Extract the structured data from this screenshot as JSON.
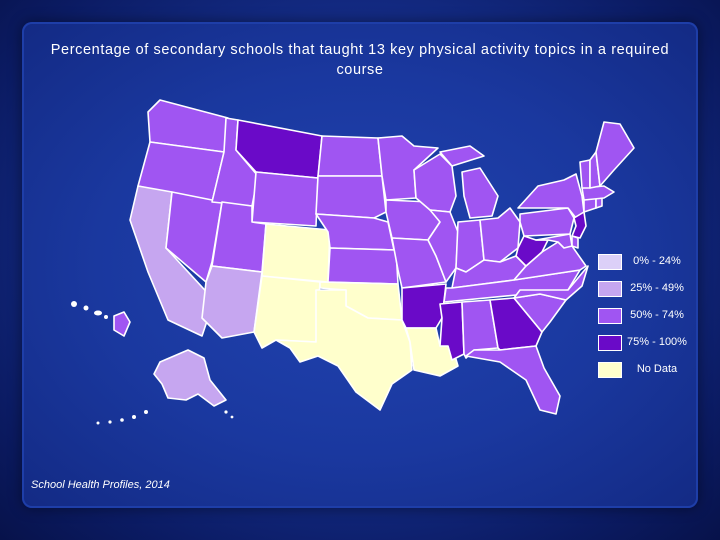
{
  "title": "Percentage of secondary schools that taught 13 key physical activity topics in a required course",
  "source": "School Health Profiles, 2014",
  "colors": {
    "background": "#1a389f",
    "border": "#ffffff",
    "no_data": "#ffffcc",
    "c0_24": "#dcd0f8",
    "c25_49": "#c6a6f0",
    "c50_74": "#a055f2",
    "c75_100": "#6a0ac8"
  },
  "legend": [
    {
      "label": "0% - 24%",
      "color": "#dcd0f8"
    },
    {
      "label": "25% - 49%",
      "color": "#c6a6f0"
    },
    {
      "label": "50% - 74%",
      "color": "#a055f2"
    },
    {
      "label": "75% - 100%",
      "color": "#6a0ac8"
    },
    {
      "label": "No Data",
      "color": "#ffffcc"
    }
  ],
  "map_data": {
    "WA": "50% - 74%",
    "OR": "50% - 74%",
    "CA": "25% - 49%",
    "NV": "50% - 74%",
    "ID": "50% - 74%",
    "MT": "75% - 100%",
    "WY": "50% - 74%",
    "UT": "50% - 74%",
    "AZ": "25% - 49%",
    "CO": "No Data",
    "NM": "No Data",
    "ND": "50% - 74%",
    "SD": "50% - 74%",
    "NE": "50% - 74%",
    "KS": "50% - 74%",
    "OK": "No Data",
    "TX": "No Data",
    "MN": "50% - 74%",
    "IA": "50% - 74%",
    "MO": "50% - 74%",
    "AR": "75% - 100%",
    "LA": "No Data",
    "WI": "50% - 74%",
    "IL": "50% - 74%",
    "MI": "50% - 74%",
    "IN": "50% - 74%",
    "OH": "50% - 74%",
    "KY": "50% - 74%",
    "TN": "50% - 74%",
    "MS": "75% - 100%",
    "AL": "50% - 74%",
    "GA": "75% - 100%",
    "FL": "50% - 74%",
    "SC": "50% - 74%",
    "NC": "50% - 74%",
    "VA": "50% - 74%",
    "WV": "75% - 100%",
    "PA": "50% - 74%",
    "NY": "50% - 74%",
    "NJ": "75% - 100%",
    "DE": "50% - 74%",
    "MD": "50% - 74%",
    "CT": "50% - 74%",
    "RI": "50% - 74%",
    "MA": "50% - 74%",
    "VT": "50% - 74%",
    "NH": "50% - 74%",
    "ME": "50% - 74%",
    "AK": "25% - 49%",
    "HI": "50% - 74%"
  }
}
